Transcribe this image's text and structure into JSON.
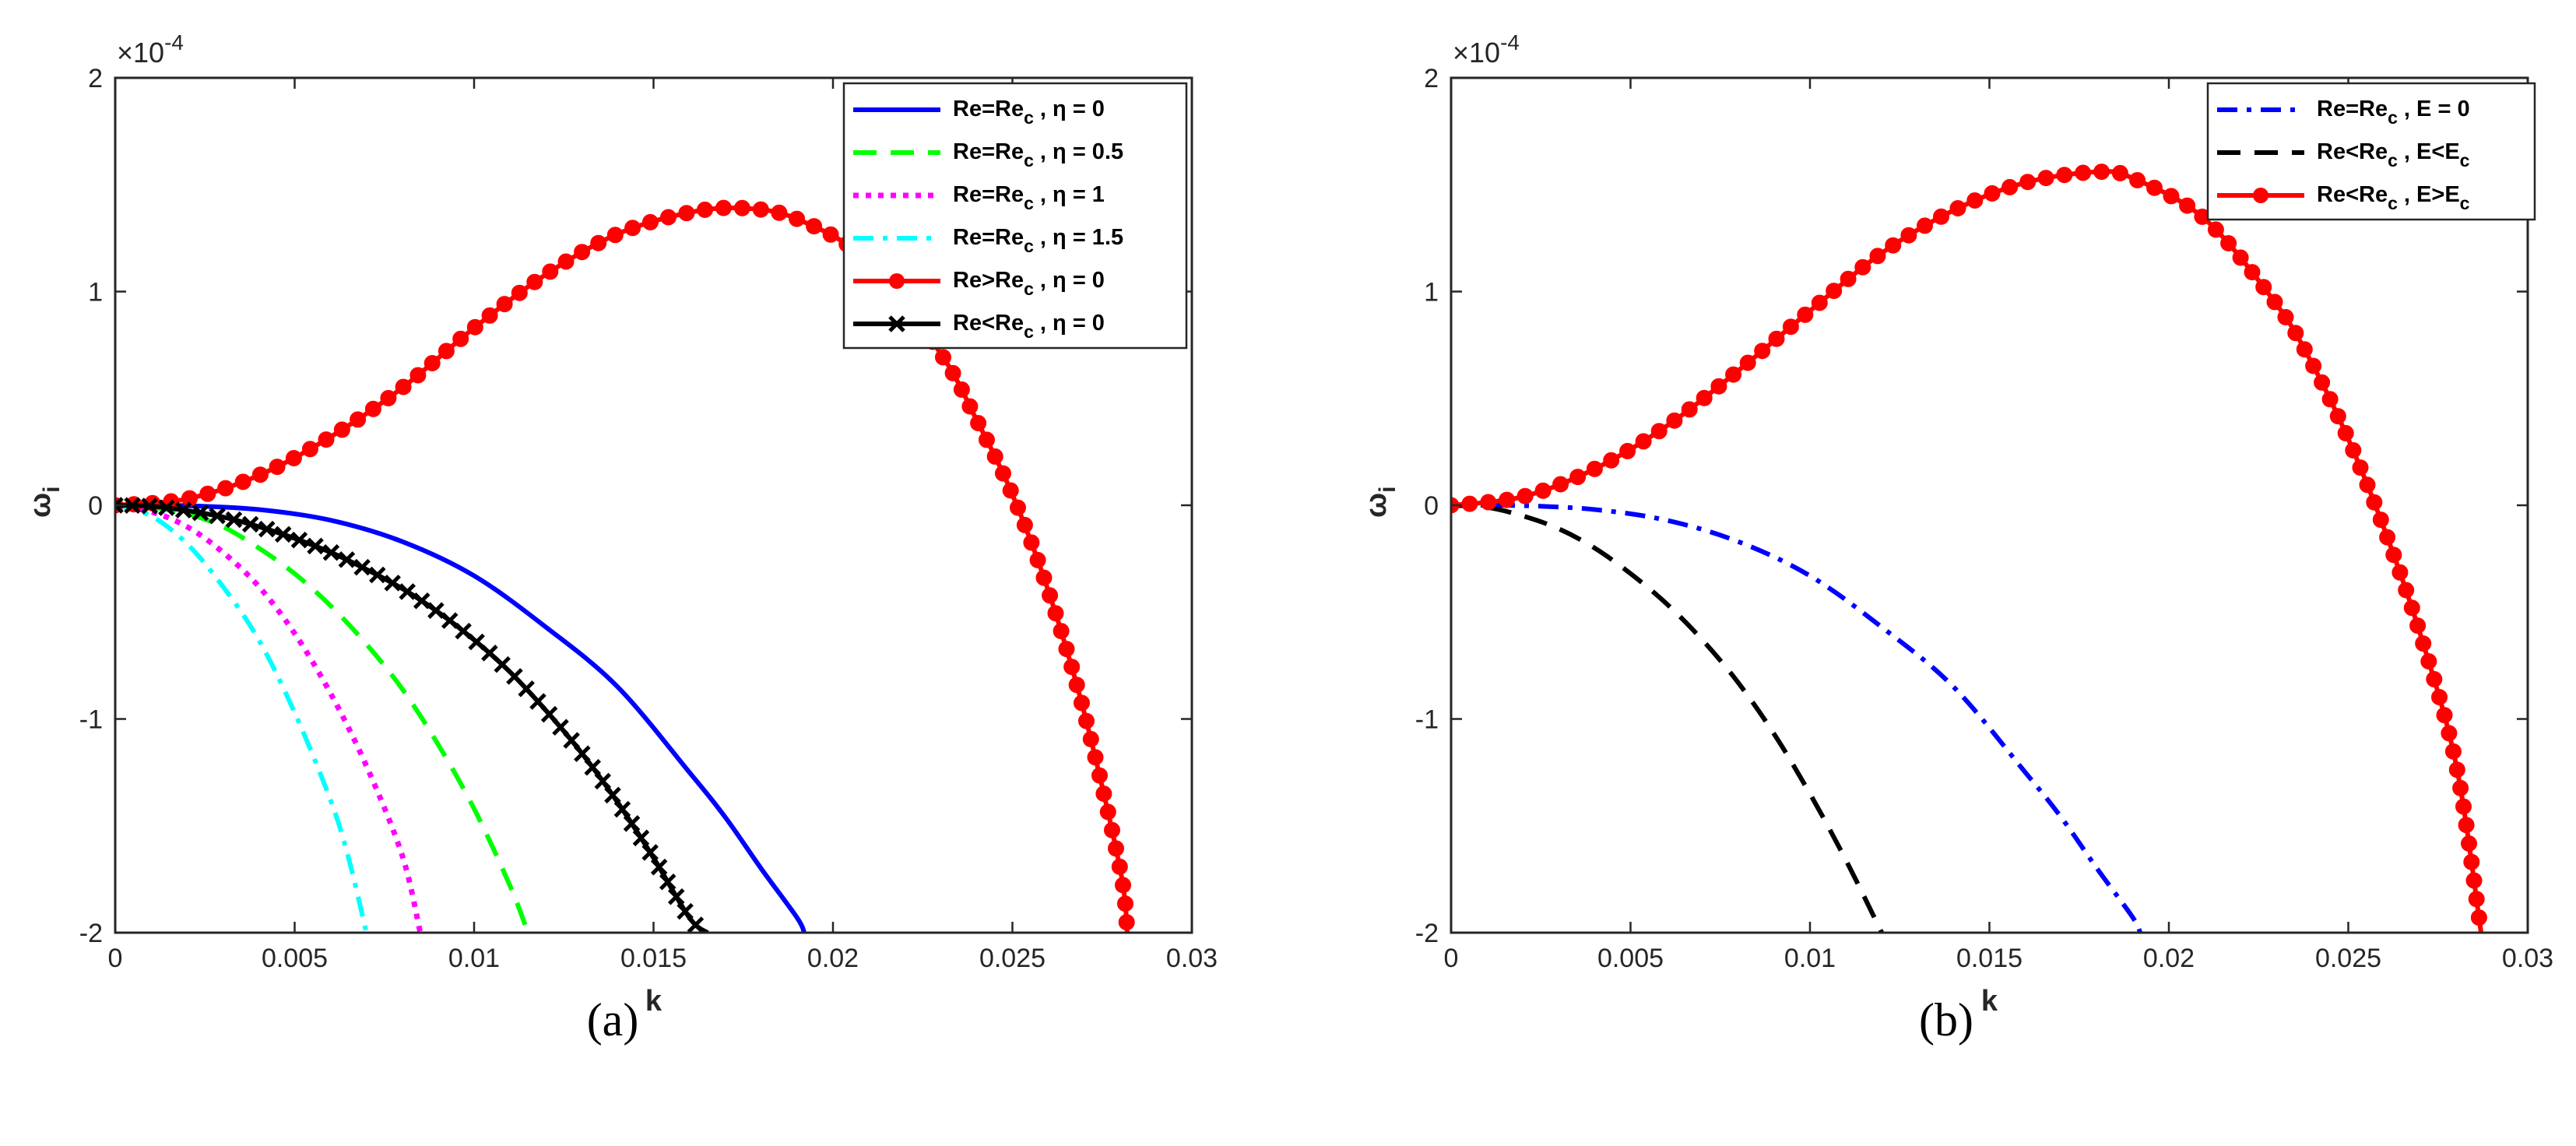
{
  "chart_data": [
    {
      "type": "line",
      "caption": "(a)",
      "xlabel": "k",
      "ylabel": "ω",
      "ylabel_sub": "i",
      "multiplier": "×10",
      "multiplier_exp": "-4",
      "xlim": [
        0,
        0.03
      ],
      "ylim": [
        -2,
        2
      ],
      "xticks": [
        0,
        0.005,
        0.01,
        0.015,
        0.02,
        0.025,
        0.03
      ],
      "xtick_labels": [
        "0",
        "0.005",
        "0.01",
        "0.015",
        "0.02",
        "0.025",
        "0.03"
      ],
      "yticks": [
        -2,
        -1,
        0,
        1,
        2
      ],
      "ytick_labels": [
        "-2",
        "-1",
        "0",
        "1",
        "2"
      ],
      "legend_position": "top-right",
      "series": [
        {
          "name": "Re=Re_c , η = 0",
          "label_main": "Re=Re",
          "label_sub": "c",
          "label_tail": " , η = 0",
          "color": "#0000ff",
          "style": "solid",
          "marker": "none",
          "x": [
            0,
            0.002,
            0.004,
            0.006,
            0.008,
            0.01,
            0.012,
            0.014,
            0.016,
            0.017,
            0.018,
            0.019,
            0.0192
          ],
          "y": [
            0,
            -0.002,
            -0.02,
            -0.07,
            -0.17,
            -0.33,
            -0.57,
            -0.85,
            -1.25,
            -1.46,
            -1.7,
            -1.93,
            -2
          ]
        },
        {
          "name": "Re=Re_c , η = 0.5",
          "label_main": "Re=Re",
          "label_sub": "c",
          "label_tail": " , η = 0.5",
          "color": "#00ff00",
          "style": "dashed",
          "marker": "none",
          "x": [
            0,
            0.001,
            0.002,
            0.003,
            0.004,
            0.005,
            0.006,
            0.007,
            0.008,
            0.009,
            0.01,
            0.011,
            0.0115
          ],
          "y": [
            0,
            -0.01,
            -0.04,
            -0.1,
            -0.2,
            -0.32,
            -0.47,
            -0.65,
            -0.86,
            -1.12,
            -1.42,
            -1.78,
            -2
          ]
        },
        {
          "name": "Re=Re_c , η = 1",
          "label_main": "Re=Re",
          "label_sub": "c",
          "label_tail": " , η = 1",
          "color": "#ff00ff",
          "style": "dotted",
          "marker": "none",
          "x": [
            0,
            0.001,
            0.002,
            0.003,
            0.004,
            0.005,
            0.006,
            0.007,
            0.008,
            0.0085
          ],
          "y": [
            0,
            -0.03,
            -0.1,
            -0.22,
            -0.38,
            -0.6,
            -0.88,
            -1.22,
            -1.64,
            -2
          ]
        },
        {
          "name": "Re=Re_c , η = 1.5",
          "label_main": "Re=Re",
          "label_sub": "c",
          "label_tail": " , η = 1.5",
          "color": "#00ffff",
          "style": "dashdot",
          "marker": "none",
          "x": [
            0,
            0.001,
            0.002,
            0.003,
            0.004,
            0.005,
            0.006,
            0.0065,
            0.007
          ],
          "y": [
            0,
            -0.05,
            -0.18,
            -0.38,
            -0.63,
            -0.97,
            -1.38,
            -1.65,
            -2
          ]
        },
        {
          "name": "Re>Re_c , η = 0",
          "label_main": "Re>Re",
          "label_sub": "c",
          "label_tail": " , η = 0",
          "color": "#ff0000",
          "style": "solid",
          "marker": "circle",
          "x": [
            0,
            0.002,
            0.004,
            0.006,
            0.008,
            0.01,
            0.012,
            0.014,
            0.016,
            0.0175,
            0.019,
            0.021,
            0.023,
            0.024,
            0.025,
            0.026,
            0.027,
            0.028,
            0.0282
          ],
          "y": [
            0,
            0.03,
            0.14,
            0.32,
            0.55,
            0.83,
            1.08,
            1.27,
            1.37,
            1.39,
            1.34,
            1.14,
            0.71,
            0.4,
            0.05,
            -0.4,
            -0.97,
            -1.7,
            -2
          ]
        },
        {
          "name": "Re<Re_c , η = 0",
          "label_main": "Re<Re",
          "label_sub": "c",
          "label_tail": " , η = 0",
          "color": "#000000",
          "style": "solid",
          "marker": "x",
          "x": [
            0,
            0.001,
            0.002,
            0.003,
            0.004,
            0.005,
            0.006,
            0.007,
            0.008,
            0.009,
            0.01,
            0.011,
            0.012,
            0.013,
            0.014,
            0.015,
            0.016,
            0.0165
          ],
          "y": [
            0,
            -0.004,
            -0.025,
            -0.055,
            -0.1,
            -0.155,
            -0.22,
            -0.3,
            -0.39,
            -0.5,
            -0.63,
            -0.78,
            -0.96,
            -1.16,
            -1.39,
            -1.65,
            -1.93,
            -2
          ]
        }
      ]
    },
    {
      "type": "line",
      "caption": "(b)",
      "xlabel": "k",
      "ylabel": "ω",
      "ylabel_sub": "i",
      "multiplier": "×10",
      "multiplier_exp": "-4",
      "xlim": [
        0,
        0.03
      ],
      "ylim": [
        -2,
        2
      ],
      "xticks": [
        0,
        0.005,
        0.01,
        0.015,
        0.02,
        0.025,
        0.03
      ],
      "xtick_labels": [
        "0",
        "0.005",
        "0.01",
        "0.015",
        "0.02",
        "0.025",
        "0.03"
      ],
      "yticks": [
        -2,
        -1,
        0,
        1,
        2
      ],
      "ytick_labels": [
        "-2",
        "-1",
        "0",
        "1",
        "2"
      ],
      "legend_position": "top-right",
      "series": [
        {
          "name": "Re=Re_c , E = 0",
          "label_main": "Re=Re",
          "label_sub": "c",
          "label_tail": " , E = 0",
          "color": "#0000ff",
          "style": "dashdot",
          "marker": "none",
          "x": [
            0,
            0.002,
            0.004,
            0.006,
            0.008,
            0.01,
            0.012,
            0.014,
            0.016,
            0.017,
            0.018,
            0.019,
            0.0192
          ],
          "y": [
            0,
            -0.002,
            -0.02,
            -0.07,
            -0.17,
            -0.33,
            -0.57,
            -0.85,
            -1.25,
            -1.46,
            -1.7,
            -1.93,
            -2
          ]
        },
        {
          "name": "Re<Re_c , E<E_c",
          "label_main": "Re<Re",
          "label_sub": "c",
          "label_tail": " , E<E",
          "label_tail_sub": "c",
          "color": "#000000",
          "style": "dashed",
          "marker": "none",
          "x": [
            0,
            0.001,
            0.002,
            0.003,
            0.004,
            0.005,
            0.006,
            0.007,
            0.008,
            0.009,
            0.01,
            0.011,
            0.012
          ],
          "y": [
            0,
            -0.01,
            -0.05,
            -0.11,
            -0.2,
            -0.32,
            -0.46,
            -0.63,
            -0.83,
            -1.07,
            -1.35,
            -1.66,
            -2
          ]
        },
        {
          "name": "Re<Re_c , E>E_c",
          "label_main": "Re<Re",
          "label_sub": "c",
          "label_tail": " , E>E",
          "label_tail_sub": "c",
          "color": "#ff0000",
          "style": "solid",
          "marker": "circle",
          "x": [
            0,
            0.002,
            0.004,
            0.006,
            0.008,
            0.01,
            0.012,
            0.014,
            0.016,
            0.018,
            0.019,
            0.021,
            0.023,
            0.024,
            0.025,
            0.026,
            0.027,
            0.028,
            0.0287
          ],
          "y": [
            0,
            0.04,
            0.17,
            0.37,
            0.63,
            0.91,
            1.18,
            1.38,
            1.51,
            1.56,
            1.53,
            1.34,
            0.94,
            0.66,
            0.31,
            -0.11,
            -0.6,
            -1.21,
            -2
          ]
        }
      ]
    }
  ]
}
